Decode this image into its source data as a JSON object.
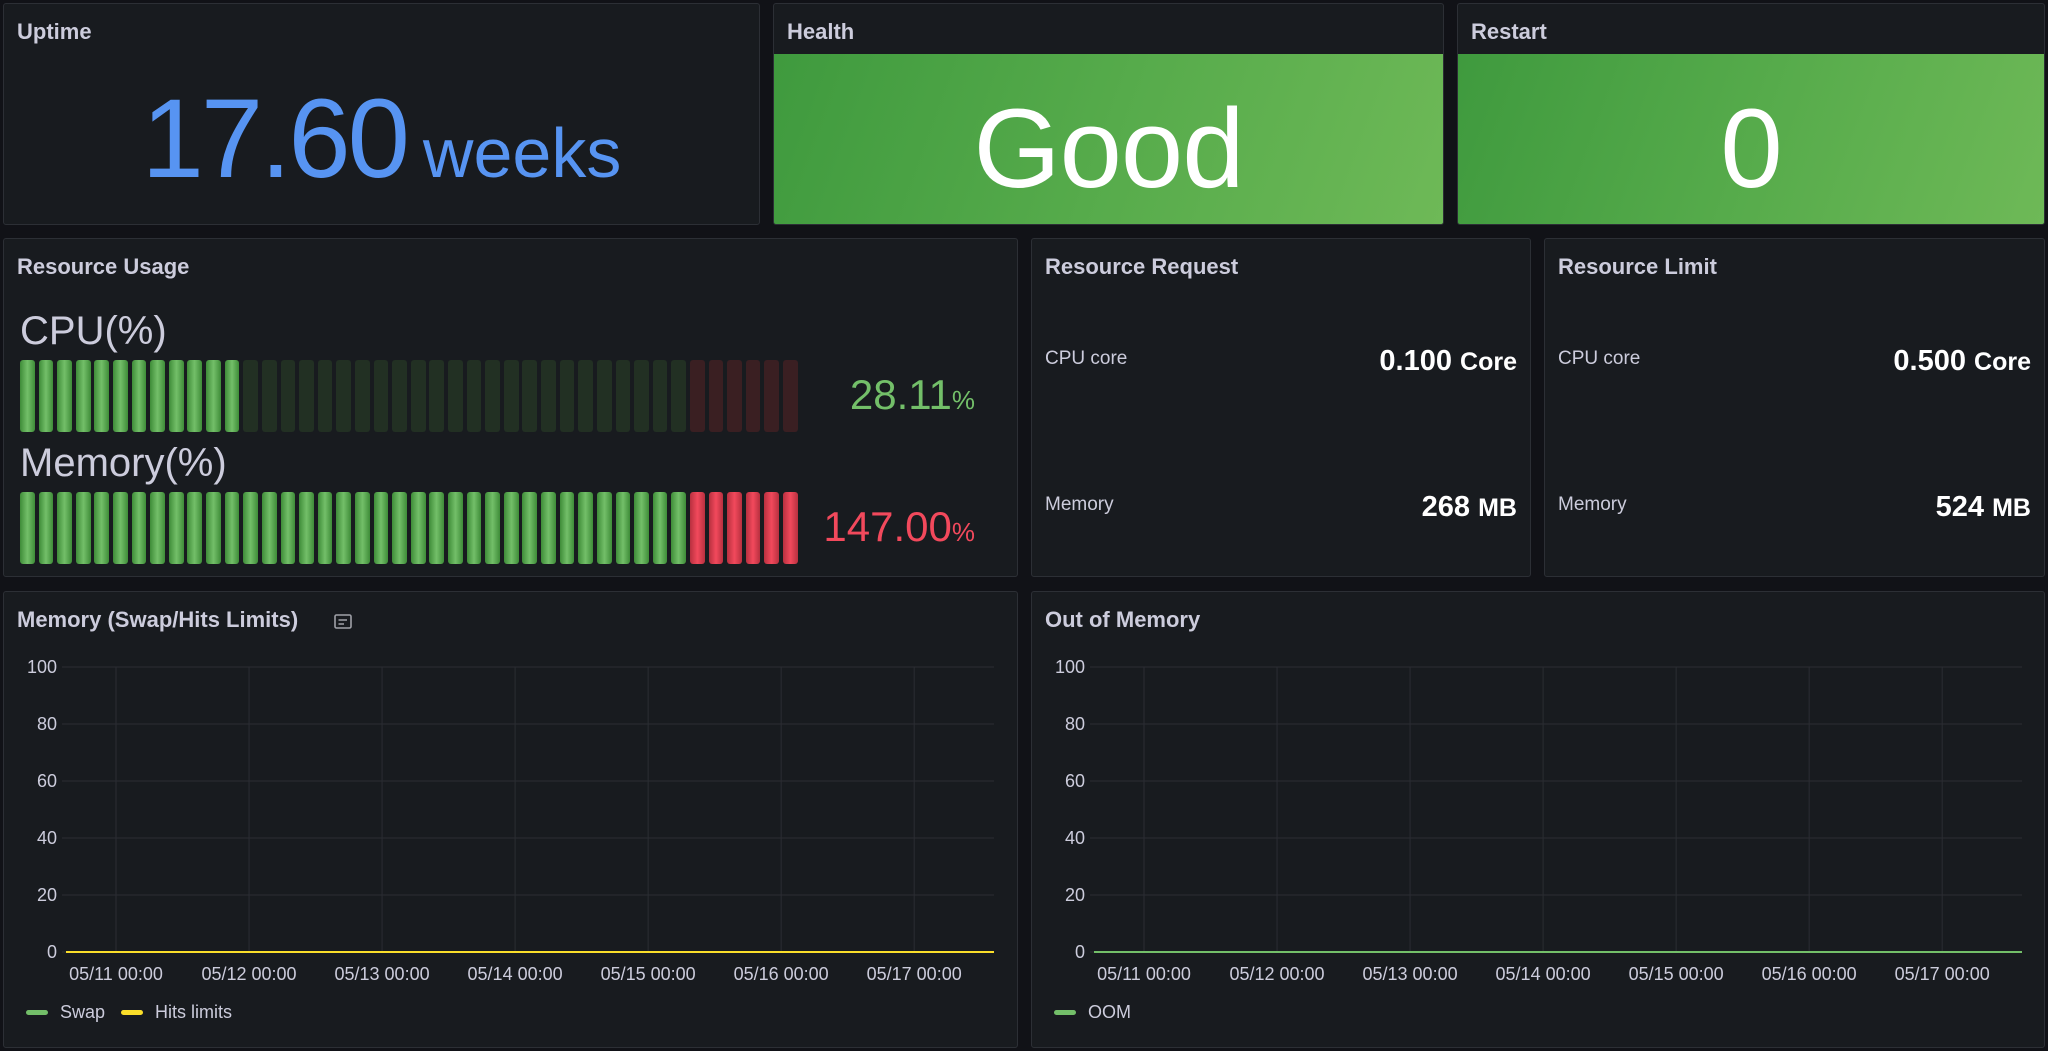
{
  "panels": {
    "uptime": {
      "title": "Uptime",
      "value": "17.60",
      "unit": "weeks",
      "color": "#5794f2"
    },
    "health": {
      "title": "Health",
      "value": "Good",
      "color": "#56a64b"
    },
    "restart": {
      "title": "Restart",
      "value": "0",
      "color": "#56a64b"
    },
    "usage": {
      "title": "Resource Usage",
      "cpu": {
        "label": "CPU(%)",
        "value": "28.11",
        "unit": "%",
        "percent": 28.11,
        "color": "#73bf69"
      },
      "memory": {
        "label": "Memory(%)",
        "value": "147.00",
        "unit": "%",
        "percent": 147.0,
        "color": "#f2495c"
      },
      "gauge_max": 100,
      "warn_threshold": 85
    },
    "request": {
      "title": "Resource Request",
      "cpu": {
        "label": "CPU core",
        "value": "0.100",
        "unit": "Core"
      },
      "memory": {
        "label": "Memory",
        "value": "268",
        "unit": "MB"
      }
    },
    "limit": {
      "title": "Resource Limit",
      "cpu": {
        "label": "CPU core",
        "value": "0.500",
        "unit": "Core"
      },
      "memory": {
        "label": "Memory",
        "value": "524",
        "unit": "MB"
      }
    },
    "swap": {
      "title": "Memory (Swap/Hits Limits)",
      "info_icon": "panel-info-icon"
    },
    "oom": {
      "title": "Out of Memory"
    }
  },
  "chart_data": [
    {
      "type": "line",
      "x": [
        "05/11 00:00",
        "05/12 00:00",
        "05/13 00:00",
        "05/14 00:00",
        "05/15 00:00",
        "05/16 00:00",
        "05/17 00:00"
      ],
      "ylim": [
        0,
        100
      ],
      "yticks": [
        "100",
        "80",
        "60",
        "40",
        "20",
        "0"
      ],
      "grid": true,
      "legend": "bottom-left",
      "series": [
        {
          "name": "Swap",
          "color": "#73bf69",
          "values": [
            0,
            0,
            0,
            0,
            0,
            0,
            0
          ]
        },
        {
          "name": "Hits limits",
          "color": "#fade2a",
          "values": [
            0,
            0,
            0,
            0,
            0,
            0,
            0
          ]
        }
      ]
    },
    {
      "type": "line",
      "x": [
        "05/11 00:00",
        "05/12 00:00",
        "05/13 00:00",
        "05/14 00:00",
        "05/15 00:00",
        "05/16 00:00",
        "05/17 00:00"
      ],
      "ylim": [
        0,
        100
      ],
      "yticks": [
        "100",
        "80",
        "60",
        "40",
        "20",
        "0"
      ],
      "grid": true,
      "legend": "bottom-left",
      "series": [
        {
          "name": "OOM",
          "color": "#73bf69",
          "values": [
            0,
            0,
            0,
            0,
            0,
            0,
            0
          ]
        }
      ]
    }
  ]
}
